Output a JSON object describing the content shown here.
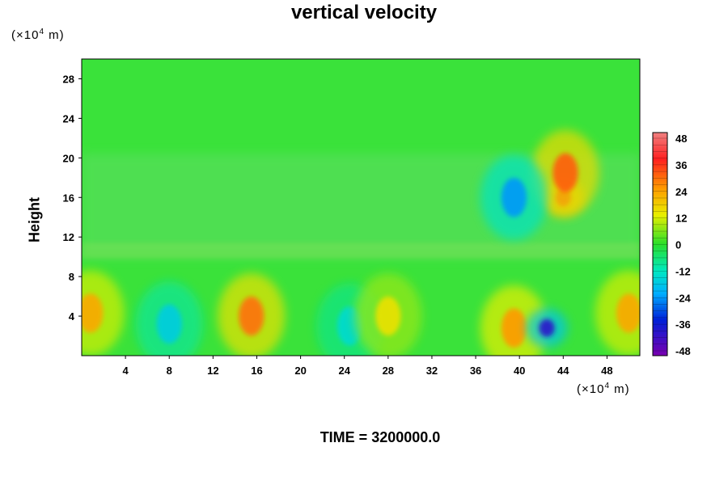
{
  "chart_data": {
    "type": "heatmap",
    "title": "vertical velocity",
    "xlabel": "",
    "ylabel": "Height",
    "x_unit_prefix": "(×10",
    "x_unit_exp": "4",
    "x_unit_suffix": " m)",
    "y_unit_prefix": "(×10",
    "y_unit_exp": "4",
    "y_unit_suffix": " m)",
    "xlim": [
      0,
      51
    ],
    "ylim": [
      0,
      30
    ],
    "x_ticks": [
      4,
      8,
      12,
      16,
      20,
      24,
      28,
      32,
      36,
      40,
      44,
      48
    ],
    "y_ticks": [
      4,
      8,
      12,
      16,
      20,
      24,
      28
    ],
    "colorbar": {
      "levels": [
        48,
        36,
        24,
        12,
        0,
        -12,
        -24,
        -36,
        -48
      ],
      "range": [
        -48,
        48
      ]
    },
    "features": [
      {
        "x": 0.8,
        "y": 4.3,
        "value": 22
      },
      {
        "x": 8,
        "y": 3.2,
        "value": -18
      },
      {
        "x": 15.5,
        "y": 4.0,
        "value": 28
      },
      {
        "x": 24.5,
        "y": 3.0,
        "value": -15
      },
      {
        "x": 28,
        "y": 4.0,
        "value": 14
      },
      {
        "x": 39.5,
        "y": 2.8,
        "value": 24
      },
      {
        "x": 42.5,
        "y": 2.8,
        "value": -40
      },
      {
        "x": 50,
        "y": 4.3,
        "value": 22
      },
      {
        "x": 44,
        "y": 16,
        "value": 36
      },
      {
        "x": 44.2,
        "y": 18.5,
        "value": 30
      },
      {
        "x": 39.5,
        "y": 16,
        "value": -26
      }
    ]
  },
  "footer": {
    "time_label": "TIME = 3200000.0"
  }
}
